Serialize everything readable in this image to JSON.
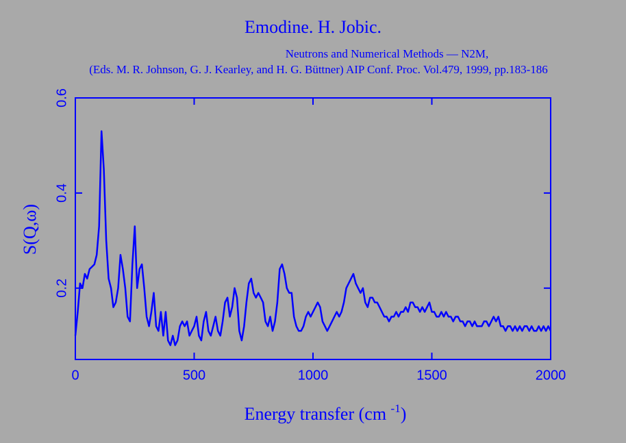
{
  "chart_data": {
    "type": "line",
    "title": "Emodine. H. Jobic.",
    "subtitle": [
      "Neutrons and Numerical Methods — N2M,",
      "(Eds. M. R. Johnson, G. J. Kearley, and H. G. Büttner) AIP Conf. Proc. Vol.479, 1999,  pp.183-186"
    ],
    "y_label": "S(Q,ω)",
    "x_label": {
      "text": "Energy transfer (cm ",
      "sup": "-1",
      "end": ")"
    },
    "color": "#0000ff",
    "xlim": [
      0,
      2000
    ],
    "xticks": [
      0,
      500,
      1000,
      1500,
      2000
    ],
    "ylim": [
      0.05,
      0.6
    ],
    "yticks": [
      0.2,
      0.4,
      0.6
    ],
    "x": [
      0,
      10,
      20,
      30,
      40,
      50,
      60,
      70,
      80,
      90,
      100,
      110,
      120,
      130,
      140,
      150,
      160,
      170,
      180,
      190,
      200,
      210,
      220,
      230,
      240,
      250,
      260,
      270,
      280,
      290,
      300,
      310,
      320,
      330,
      340,
      350,
      360,
      370,
      380,
      390,
      400,
      410,
      420,
      430,
      440,
      450,
      460,
      470,
      480,
      490,
      500,
      510,
      520,
      530,
      540,
      550,
      560,
      570,
      580,
      590,
      600,
      610,
      620,
      630,
      640,
      650,
      660,
      670,
      680,
      690,
      700,
      710,
      720,
      730,
      740,
      750,
      760,
      770,
      780,
      790,
      800,
      810,
      820,
      830,
      840,
      850,
      860,
      870,
      880,
      890,
      900,
      910,
      920,
      930,
      940,
      950,
      960,
      970,
      980,
      990,
      1000,
      1010,
      1020,
      1030,
      1040,
      1050,
      1060,
      1070,
      1080,
      1090,
      1100,
      1110,
      1120,
      1130,
      1140,
      1150,
      1160,
      1170,
      1180,
      1190,
      1200,
      1210,
      1220,
      1230,
      1240,
      1250,
      1260,
      1270,
      1280,
      1290,
      1300,
      1310,
      1320,
      1330,
      1340,
      1350,
      1360,
      1370,
      1380,
      1390,
      1400,
      1410,
      1420,
      1430,
      1440,
      1450,
      1460,
      1470,
      1480,
      1490,
      1500,
      1510,
      1520,
      1530,
      1540,
      1550,
      1560,
      1570,
      1580,
      1590,
      1600,
      1610,
      1620,
      1630,
      1640,
      1650,
      1660,
      1670,
      1680,
      1690,
      1700,
      1710,
      1720,
      1730,
      1740,
      1750,
      1760,
      1770,
      1780,
      1790,
      1800,
      1810,
      1820,
      1830,
      1840,
      1850,
      1860,
      1870,
      1880,
      1890,
      1900,
      1910,
      1920,
      1930,
      1940,
      1950,
      1960,
      1970,
      1980,
      1990,
      2000
    ],
    "values": [
      0.1,
      0.15,
      0.21,
      0.2,
      0.23,
      0.22,
      0.24,
      0.245,
      0.25,
      0.27,
      0.33,
      0.53,
      0.45,
      0.3,
      0.22,
      0.2,
      0.16,
      0.17,
      0.2,
      0.27,
      0.24,
      0.2,
      0.14,
      0.13,
      0.25,
      0.33,
      0.2,
      0.24,
      0.25,
      0.2,
      0.14,
      0.12,
      0.15,
      0.19,
      0.12,
      0.11,
      0.15,
      0.1,
      0.15,
      0.09,
      0.08,
      0.1,
      0.08,
      0.09,
      0.12,
      0.13,
      0.12,
      0.13,
      0.1,
      0.11,
      0.12,
      0.14,
      0.1,
      0.09,
      0.13,
      0.15,
      0.11,
      0.1,
      0.12,
      0.14,
      0.11,
      0.1,
      0.13,
      0.17,
      0.18,
      0.14,
      0.16,
      0.2,
      0.18,
      0.11,
      0.09,
      0.12,
      0.17,
      0.21,
      0.22,
      0.19,
      0.18,
      0.19,
      0.18,
      0.17,
      0.13,
      0.12,
      0.14,
      0.11,
      0.13,
      0.17,
      0.24,
      0.25,
      0.23,
      0.2,
      0.19,
      0.19,
      0.14,
      0.12,
      0.11,
      0.11,
      0.12,
      0.14,
      0.15,
      0.14,
      0.15,
      0.16,
      0.17,
      0.16,
      0.13,
      0.12,
      0.11,
      0.12,
      0.13,
      0.14,
      0.15,
      0.14,
      0.15,
      0.17,
      0.2,
      0.21,
      0.22,
      0.23,
      0.21,
      0.2,
      0.19,
      0.2,
      0.17,
      0.16,
      0.18,
      0.18,
      0.17,
      0.17,
      0.16,
      0.15,
      0.14,
      0.14,
      0.13,
      0.14,
      0.14,
      0.15,
      0.14,
      0.15,
      0.15,
      0.16,
      0.15,
      0.17,
      0.17,
      0.16,
      0.16,
      0.15,
      0.16,
      0.15,
      0.16,
      0.17,
      0.15,
      0.15,
      0.14,
      0.14,
      0.15,
      0.14,
      0.15,
      0.14,
      0.14,
      0.13,
      0.14,
      0.14,
      0.13,
      0.13,
      0.12,
      0.13,
      0.13,
      0.12,
      0.13,
      0.12,
      0.12,
      0.12,
      0.13,
      0.13,
      0.12,
      0.13,
      0.14,
      0.13,
      0.14,
      0.12,
      0.12,
      0.11,
      0.12,
      0.12,
      0.11,
      0.12,
      0.11,
      0.12,
      0.11,
      0.12,
      0.12,
      0.11,
      0.12,
      0.11,
      0.11,
      0.12,
      0.11,
      0.12,
      0.11,
      0.12,
      0.11
    ]
  }
}
